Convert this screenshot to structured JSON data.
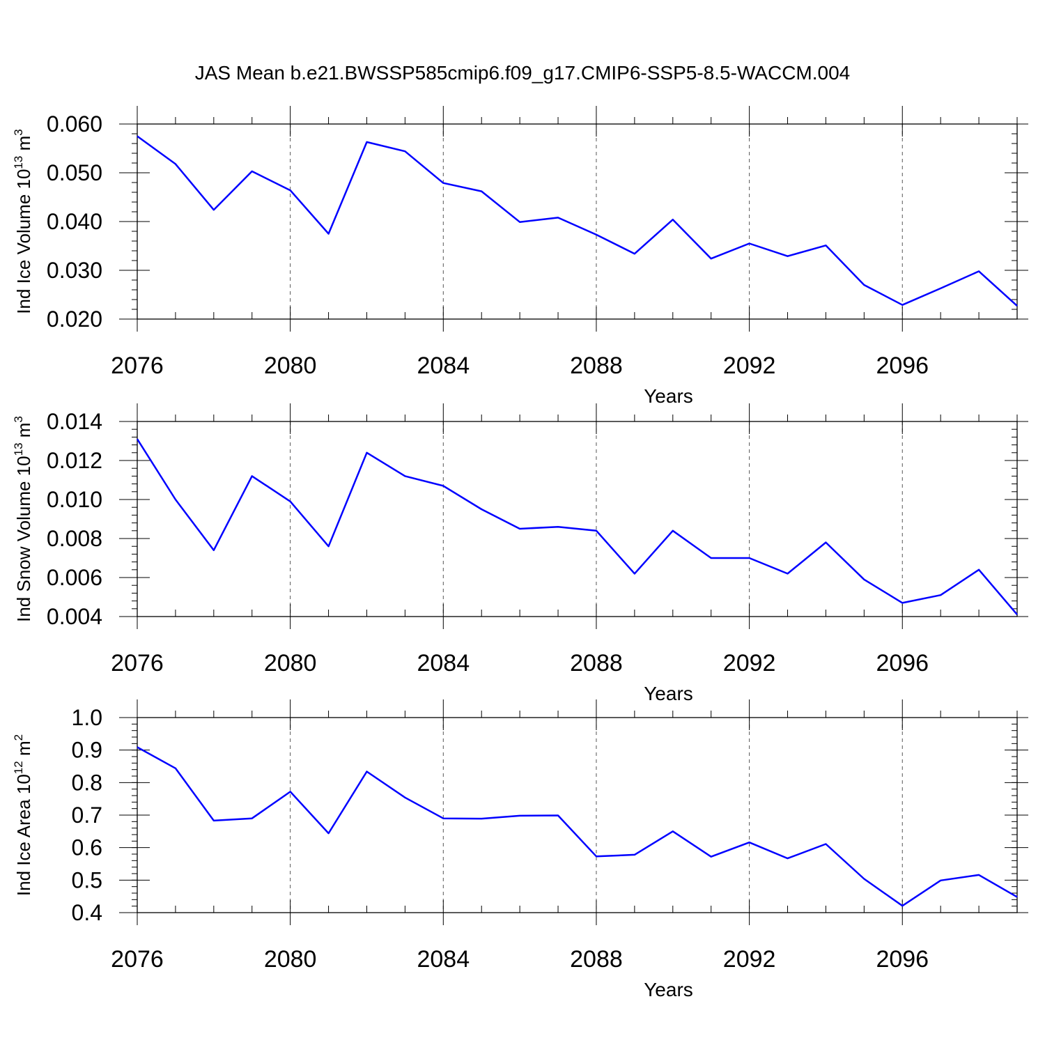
{
  "chart_data": [
    {
      "type": "line",
      "title": "JAS Mean b.e21.BWSSP585cmip6.f09_g17.CMIP6-SSP5-8.5-WACCM.004",
      "ylabel": "Ind Ice Volume 10",
      "ylabel_exp": "13",
      "ylabel_unit": " m",
      "ylabel_unit_exp": "3",
      "xlabel": "Years",
      "xlim": [
        2076,
        2099
      ],
      "ylim": [
        0.02,
        0.06
      ],
      "yticks": [
        0.02,
        0.03,
        0.04,
        0.05,
        0.06
      ],
      "ytick_labels": [
        "0.020",
        "0.030",
        "0.040",
        "0.050",
        "0.060"
      ],
      "ytick_minor_step": 0.002,
      "xticks": [
        2076,
        2080,
        2084,
        2088,
        2092,
        2096
      ],
      "xtick_labels": [
        "2076",
        "2080",
        "2084",
        "2088",
        "2092",
        "2096"
      ],
      "x": [
        2076,
        2077,
        2078,
        2079,
        2080,
        2081,
        2082,
        2083,
        2084,
        2085,
        2086,
        2087,
        2088,
        2089,
        2090,
        2091,
        2092,
        2093,
        2094,
        2095,
        2096,
        2097,
        2098,
        2099
      ],
      "series": [
        {
          "name": "Ind Ice Volume",
          "color": "#0000ff",
          "values": [
            0.0575,
            0.0518,
            0.0424,
            0.0503,
            0.0464,
            0.0375,
            0.0563,
            0.0544,
            0.0479,
            0.0462,
            0.0399,
            0.0408,
            0.0373,
            0.0334,
            0.0404,
            0.0324,
            0.0355,
            0.0329,
            0.0351,
            0.027,
            0.0229,
            0.0263,
            0.0298,
            0.0227
          ]
        }
      ]
    },
    {
      "type": "line",
      "title": "",
      "ylabel": "Ind Snow Volume 10",
      "ylabel_exp": "13",
      "ylabel_unit": " m",
      "ylabel_unit_exp": "3",
      "xlabel": "Years",
      "xlim": [
        2076,
        2099
      ],
      "ylim": [
        0.004,
        0.014
      ],
      "yticks": [
        0.004,
        0.006,
        0.008,
        0.01,
        0.012,
        0.014
      ],
      "ytick_labels": [
        "0.004",
        "0.006",
        "0.008",
        "0.010",
        "0.012",
        "0.014"
      ],
      "ytick_minor_step": 0.0004,
      "xticks": [
        2076,
        2080,
        2084,
        2088,
        2092,
        2096
      ],
      "xtick_labels": [
        "2076",
        "2080",
        "2084",
        "2088",
        "2092",
        "2096"
      ],
      "x": [
        2076,
        2077,
        2078,
        2079,
        2080,
        2081,
        2082,
        2083,
        2084,
        2085,
        2086,
        2087,
        2088,
        2089,
        2090,
        2091,
        2092,
        2093,
        2094,
        2095,
        2096,
        2097,
        2098,
        2099
      ],
      "series": [
        {
          "name": "Ind Snow Volume",
          "color": "#0000ff",
          "values": [
            0.0131,
            0.01,
            0.0074,
            0.0112,
            0.0099,
            0.0076,
            0.0124,
            0.0112,
            0.0107,
            0.0095,
            0.0085,
            0.0086,
            0.0084,
            0.0062,
            0.0084,
            0.007,
            0.007,
            0.0062,
            0.0078,
            0.0059,
            0.0047,
            0.0051,
            0.0064,
            0.0041
          ]
        }
      ]
    },
    {
      "type": "line",
      "title": "",
      "ylabel": "Ind Ice Area 10",
      "ylabel_exp": "12",
      "ylabel_unit": " m",
      "ylabel_unit_exp": "2",
      "xlabel": "Years",
      "xlim": [
        2076,
        2099
      ],
      "ylim": [
        0.4,
        1.0
      ],
      "yticks": [
        0.4,
        0.5,
        0.6,
        0.7,
        0.8,
        0.9,
        1.0
      ],
      "ytick_labels": [
        "0.4",
        "0.5",
        "0.6",
        "0.7",
        "0.8",
        "0.9",
        "1.0"
      ],
      "ytick_minor_step": 0.02,
      "xticks": [
        2076,
        2080,
        2084,
        2088,
        2092,
        2096
      ],
      "xtick_labels": [
        "2076",
        "2080",
        "2084",
        "2088",
        "2092",
        "2096"
      ],
      "x": [
        2076,
        2077,
        2078,
        2079,
        2080,
        2081,
        2082,
        2083,
        2084,
        2085,
        2086,
        2087,
        2088,
        2089,
        2090,
        2091,
        2092,
        2093,
        2094,
        2095,
        2096,
        2097,
        2098,
        2099
      ],
      "series": [
        {
          "name": "Ind Ice Area",
          "color": "#0000ff",
          "values": [
            0.909,
            0.844,
            0.683,
            0.69,
            0.772,
            0.644,
            0.834,
            0.754,
            0.69,
            0.689,
            0.698,
            0.699,
            0.573,
            0.578,
            0.65,
            0.572,
            0.616,
            0.567,
            0.611,
            0.504,
            0.421,
            0.499,
            0.516,
            0.448
          ]
        }
      ]
    }
  ]
}
